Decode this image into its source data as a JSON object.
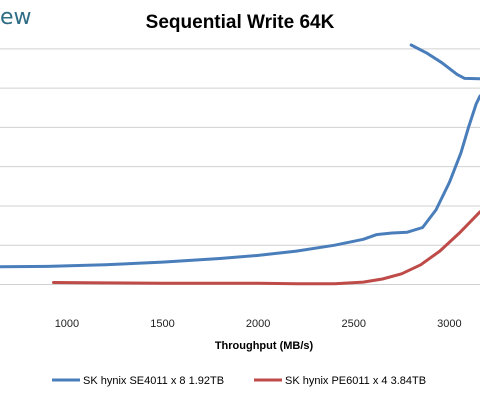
{
  "brand": "ew",
  "chart_data": {
    "type": "line",
    "title": "Sequential Write 64K",
    "xlabel": "Throughput (MB/s)",
    "ylabel": "",
    "xlim": [
      650,
      3160
    ],
    "ylim": [
      -6,
      61
    ],
    "x_ticks": [
      1000,
      1500,
      2000,
      2500,
      3000
    ],
    "y_gridlines": [
      0,
      10,
      20,
      30,
      40,
      50,
      60
    ],
    "grid": "horizontal",
    "legend_position": "bottom",
    "series": [
      {
        "name": "SK hynix SE4011 x 8 1.92TB",
        "color": "#4a7ebb",
        "segments": [
          [
            [
              650,
              4.5
            ],
            [
              900,
              4.6
            ],
            [
              1200,
              5.0
            ],
            [
              1500,
              5.7
            ],
            [
              1800,
              6.6
            ],
            [
              2000,
              7.4
            ],
            [
              2200,
              8.5
            ],
            [
              2400,
              10.0
            ],
            [
              2550,
              11.5
            ],
            [
              2620,
              12.7
            ],
            [
              2700,
              13.1
            ],
            [
              2780,
              13.3
            ],
            [
              2860,
              14.5
            ],
            [
              2930,
              19.0
            ],
            [
              3000,
              26.0
            ],
            [
              3060,
              33.5
            ],
            [
              3100,
              40.0
            ],
            [
              3140,
              46.0
            ],
            [
              3160,
              48.0
            ]
          ],
          [
            [
              2800,
              61.0
            ],
            [
              2880,
              59.0
            ],
            [
              2960,
              56.5
            ],
            [
              3040,
              53.5
            ],
            [
              3080,
              52.5
            ],
            [
              3160,
              52.4
            ]
          ]
        ]
      },
      {
        "name": "SK hynix PE6011 x 4 3.84TB",
        "color": "#be4b48",
        "segments": [
          [
            [
              930,
              0.5
            ],
            [
              1200,
              0.4
            ],
            [
              1500,
              0.3
            ],
            [
              1800,
              0.3
            ],
            [
              2000,
              0.3
            ],
            [
              2200,
              0.2
            ],
            [
              2400,
              0.2
            ],
            [
              2550,
              0.6
            ],
            [
              2650,
              1.4
            ],
            [
              2750,
              2.7
            ],
            [
              2850,
              5.0
            ],
            [
              2950,
              8.5
            ],
            [
              3050,
              13.0
            ],
            [
              3120,
              16.5
            ],
            [
              3160,
              18.5
            ]
          ]
        ]
      }
    ]
  }
}
